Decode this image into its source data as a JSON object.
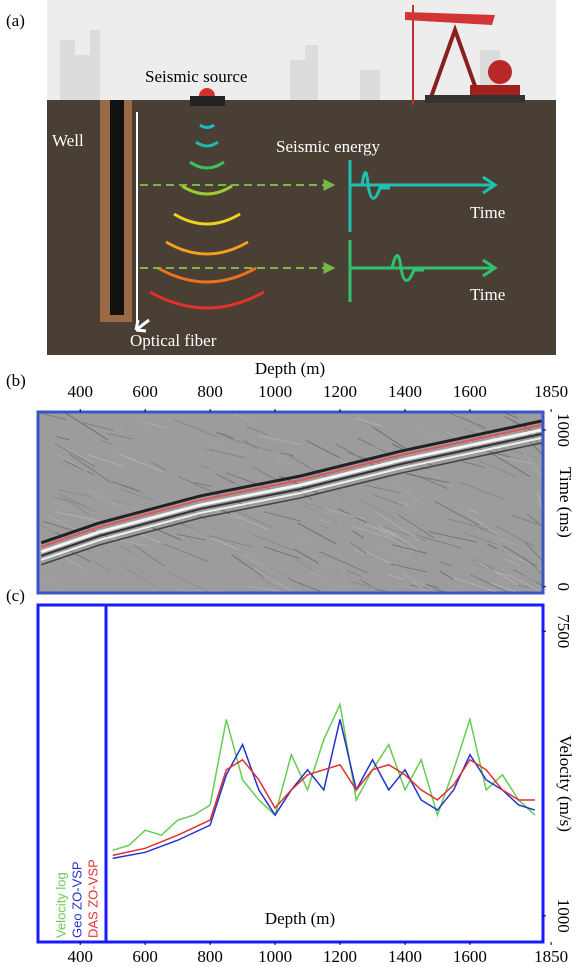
{
  "diagram": {
    "label": "(a)",
    "source": "Seismic source",
    "well": "Well",
    "energy": "Seismic energy",
    "time_labels": [
      "Time",
      "Time"
    ],
    "fiber": "Optical fiber"
  },
  "chart_data": [
    {
      "type": "seismic",
      "panel": "(b)",
      "xlabel": "Depth (m)",
      "ylabel": "Time (ms)",
      "xlim": [
        270,
        1825
      ],
      "xticks": [
        400,
        600,
        800,
        1000,
        1200,
        1400,
        1600,
        1850
      ],
      "ylim": [
        -40,
        1115
      ],
      "yticks": [
        0,
        1000
      ],
      "frame_color": "#3a55c8",
      "series": [
        {
          "color": "#e05555",
          "x": [
            280,
            460,
            770,
            1080,
            1390,
            1820
          ],
          "values": [
            255,
            382,
            554,
            682,
            841,
            1032
          ]
        }
      ]
    },
    {
      "type": "line",
      "panel": "(c)",
      "xlabel": "Depth (m)",
      "ylabel": "Velocity (m/s)",
      "xlim": [
        270,
        1825
      ],
      "xticks": [
        400,
        600,
        800,
        1000,
        1200,
        1400,
        1600,
        1850
      ],
      "ylim": [
        400,
        8100
      ],
      "yticks": [
        1000,
        7500
      ],
      "frame_color": "#1a1aff",
      "series": [
        {
          "name": "Velocity log",
          "color": "#66cc55",
          "x": [
            500,
            550,
            600,
            650,
            700,
            750,
            800,
            850,
            900,
            950,
            1000,
            1050,
            1100,
            1150,
            1200,
            1250,
            1300,
            1350,
            1400,
            1450,
            1500,
            1550,
            1600,
            1650,
            1700,
            1750,
            1800
          ],
          "values": [
            2495,
            2610,
            2955,
            2840,
            3185,
            3300,
            3530,
            5485,
            4105,
            3645,
            3300,
            4680,
            3875,
            5025,
            5830,
            3645,
            4335,
            4910,
            3875,
            4565,
            3300,
            4335,
            5485,
            3875,
            4220,
            3645,
            3300
          ]
        },
        {
          "name": "Geo ZO-VSP",
          "color": "#2233cc",
          "x": [
            500,
            600,
            700,
            800,
            850,
            900,
            950,
            1000,
            1050,
            1100,
            1150,
            1200,
            1250,
            1300,
            1350,
            1400,
            1450,
            1500,
            1550,
            1600,
            1650,
            1700,
            1750,
            1800
          ],
          "values": [
            2311,
            2449,
            2725,
            3070,
            4220,
            4910,
            3875,
            3300,
            3875,
            4335,
            3875,
            5485,
            3875,
            4565,
            3875,
            4335,
            3645,
            3415,
            3875,
            4680,
            4105,
            3875,
            3530,
            3415
          ]
        },
        {
          "name": "DAS ZO-VSP",
          "color": "#e03030",
          "x": [
            500,
            600,
            700,
            800,
            850,
            900,
            950,
            1000,
            1050,
            1100,
            1150,
            1200,
            1250,
            1300,
            1350,
            1400,
            1450,
            1500,
            1550,
            1600,
            1650,
            1700,
            1750,
            1800
          ],
          "values": [
            2380,
            2541,
            2840,
            3185,
            4335,
            4565,
            4105,
            3461,
            3875,
            4220,
            4335,
            4450,
            3875,
            4335,
            4450,
            4220,
            3875,
            3645,
            3990,
            4565,
            4335,
            3875,
            3645,
            3645
          ]
        }
      ]
    }
  ]
}
